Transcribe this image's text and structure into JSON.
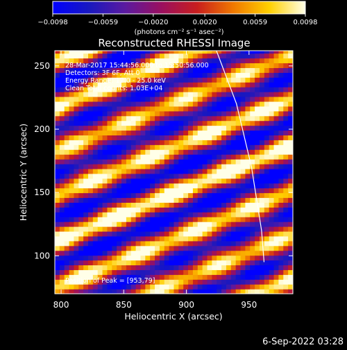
{
  "chart_data": {
    "type": "heatmap",
    "title": "Reconstructed RHESSI Image",
    "xlabel": "Heliocentric X (arcsec)",
    "ylabel": "Heliocentric Y (arcsec)",
    "xlim": [
      795,
      985
    ],
    "ylim": [
      70,
      262
    ],
    "x_ticks": [
      "800",
      "850",
      "900",
      "950"
    ],
    "y_ticks": [
      "100",
      "150",
      "200",
      "250"
    ],
    "x_tick_values": [
      800,
      850,
      900,
      950
    ],
    "y_tick_values": [
      100,
      150,
      200,
      250
    ],
    "colorbar": {
      "label": "(photons cm⁻² s⁻¹ asec⁻²)",
      "range": [
        -0.0098,
        0.0098
      ],
      "tick_labels": [
        "−0.0098",
        "−0.0059",
        "−0.0020",
        "0.0020",
        "0.0059",
        "0.0098"
      ],
      "tick_values": [
        -0.0098,
        -0.0059,
        -0.002,
        0.002,
        0.0059,
        0.0098
      ],
      "colors": [
        "#0000ff",
        "#1818c0",
        "#5a1aa0",
        "#9a0f60",
        "#c81e1e",
        "#f07800",
        "#ffd000",
        "#ffffe8"
      ]
    },
    "fringe_pattern": {
      "period_arcsec": 33,
      "direction_deg": -68
    },
    "limb_curve": [
      [
        924,
        262
      ],
      [
        940,
        220
      ],
      [
        952,
        170
      ],
      [
        960,
        120
      ],
      [
        962,
        95
      ]
    ],
    "annotations": [
      "28-Mar-2017 15:44:56.000 to 15:50:56.000",
      "Detectors: 3F 6F, Att 0",
      "Energy Range: 12.0 - 25.0 keV",
      "Clean     Total counts: 1.03E+04",
      "Position of Peak = [953,79]"
    ],
    "grid": false
  },
  "footer": {
    "timestamp": "6-Sep-2022 03:28"
  }
}
